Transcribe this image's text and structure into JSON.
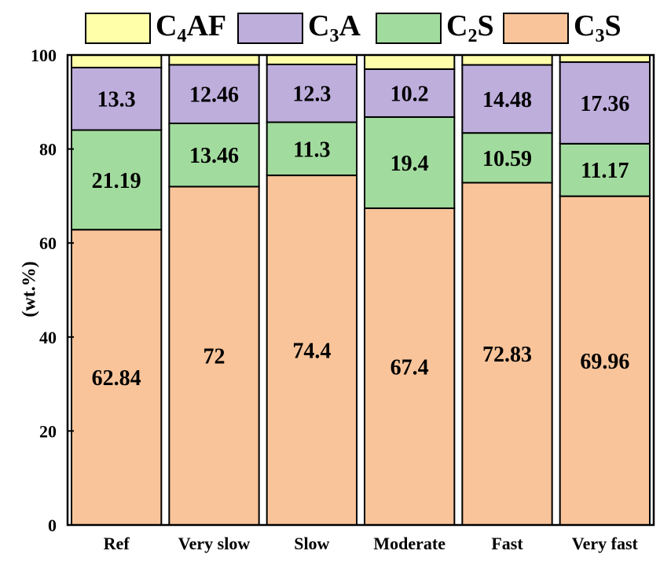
{
  "chart_data": {
    "type": "bar",
    "stacked": true,
    "categories": [
      "Ref",
      "Very slow",
      "Slow",
      "Moderate",
      "Fast",
      "Very fast"
    ],
    "series": [
      {
        "name": "C3S",
        "name_main": "C",
        "name_sub": "3",
        "name_tail": "S",
        "color": "#F9C49A",
        "values": [
          62.84,
          72,
          74.4,
          67.4,
          72.83,
          69.96
        ],
        "labels": [
          "62.84",
          "72",
          "74.4",
          "67.4",
          "72.83",
          "69.96"
        ]
      },
      {
        "name": "C2S",
        "name_main": "C",
        "name_sub": "2",
        "name_tail": "S",
        "color": "#A2DB9E",
        "values": [
          21.19,
          13.46,
          11.3,
          19.4,
          10.59,
          11.17
        ],
        "labels": [
          "21.19",
          "13.46",
          "11.3",
          "19.4",
          "10.59",
          "11.17"
        ]
      },
      {
        "name": "C3A",
        "name_main": "C",
        "name_sub": "3",
        "name_tail": "A",
        "color": "#BEAEDC",
        "values": [
          13.3,
          12.46,
          12.3,
          10.2,
          14.48,
          17.36
        ],
        "labels": [
          "13.3",
          "12.46",
          "12.3",
          "10.2",
          "14.48",
          "17.36"
        ]
      },
      {
        "name": "C4AF",
        "name_main": "C",
        "name_sub": "4",
        "name_tail": "AF",
        "color": "#FFFFAA",
        "values": [
          2.67,
          2.08,
          2.0,
          3.0,
          2.1,
          1.51
        ]
      }
    ],
    "legend_order": [
      "C4AF",
      "C3A",
      "C2S",
      "C3S"
    ],
    "xlabel": "",
    "ylabel": "(wt.%)",
    "ylim": [
      0,
      100
    ],
    "yticks": [
      0,
      20,
      40,
      60,
      80,
      100
    ],
    "grid": false,
    "legend_position": "top"
  }
}
